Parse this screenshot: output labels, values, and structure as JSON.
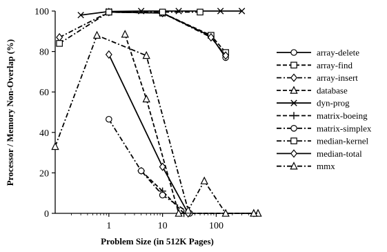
{
  "chart_data": {
    "type": "line",
    "title": "",
    "xlabel": "Problem Size (in 512K Pages)",
    "ylabel": "Processor / Memory Non-Overlap (%)",
    "xscale": "log",
    "xlim": [
      0.1,
      600
    ],
    "ylim": [
      0,
      100
    ],
    "x_ticks": [
      1,
      10,
      100
    ],
    "x_tick_labels": [
      "1",
      "10",
      "100"
    ],
    "y_ticks": [
      0,
      20,
      40,
      60,
      80,
      100
    ],
    "y_tick_labels": [
      "0",
      "20",
      "40",
      "60",
      "80",
      "100"
    ],
    "grid": false,
    "legend_position": "right",
    "series": [
      {
        "name": "array-delete",
        "dash": "solid",
        "marker": "circle",
        "points": [
          [
            1,
            99.5
          ],
          [
            10,
            99.0
          ],
          [
            80,
            87.5
          ],
          [
            150,
            77.0
          ]
        ]
      },
      {
        "name": "array-find",
        "dash": "dash",
        "marker": "square",
        "points": [
          [
            1,
            99.5
          ],
          [
            10,
            99.0
          ],
          [
            80,
            88.0
          ],
          [
            150,
            79.5
          ]
        ]
      },
      {
        "name": "array-insert",
        "dash": "dashdot",
        "marker": "diamond",
        "points": [
          [
            0.12,
            87.0
          ],
          [
            1,
            99.5
          ],
          [
            10,
            99.0
          ],
          [
            80,
            87.0
          ],
          [
            150,
            78.0
          ]
        ]
      },
      {
        "name": "database",
        "dash": "dash",
        "marker": "triangle",
        "points": [
          [
            2,
            88.5
          ],
          [
            5,
            56.5
          ],
          [
            20,
            0
          ],
          [
            600,
            0
          ]
        ]
      },
      {
        "name": "dyn-prog",
        "dash": "solid",
        "marker": "cross",
        "points": [
          [
            0.3,
            98.0
          ],
          [
            1,
            99.8
          ],
          [
            4,
            100
          ],
          [
            20,
            100
          ],
          [
            120,
            100
          ],
          [
            300,
            100
          ]
        ]
      },
      {
        "name": "matrix-boeing",
        "dash": "dash",
        "marker": "plus",
        "points": [
          [
            4,
            21.0
          ],
          [
            10,
            11.0
          ],
          [
            25,
            0
          ],
          [
            500,
            0
          ]
        ]
      },
      {
        "name": "matrix-simplex",
        "dash": "dashdot",
        "marker": "circle",
        "points": [
          [
            1,
            46.5
          ],
          [
            4,
            21.0
          ],
          [
            10,
            9.0
          ],
          [
            32,
            0
          ]
        ]
      },
      {
        "name": "median-kernel",
        "dash": "dashdot",
        "marker": "square",
        "points": [
          [
            0.12,
            84.0
          ],
          [
            1,
            99.5
          ],
          [
            10,
            99.5
          ],
          [
            50,
            99.5
          ]
        ]
      },
      {
        "name": "median-total",
        "dash": "solid",
        "marker": "diamond",
        "points": [
          [
            1,
            78.5
          ],
          [
            10,
            23.0
          ],
          [
            30,
            0
          ]
        ]
      },
      {
        "name": "mmx",
        "dash": "dashdot",
        "marker": "triangle",
        "points": [
          [
            0.1,
            33.0
          ],
          [
            0.6,
            88.0
          ],
          [
            5,
            78.0
          ],
          [
            30,
            1.5
          ],
          [
            60,
            16.0
          ],
          [
            150,
            0
          ],
          [
            500,
            0
          ]
        ]
      }
    ]
  }
}
